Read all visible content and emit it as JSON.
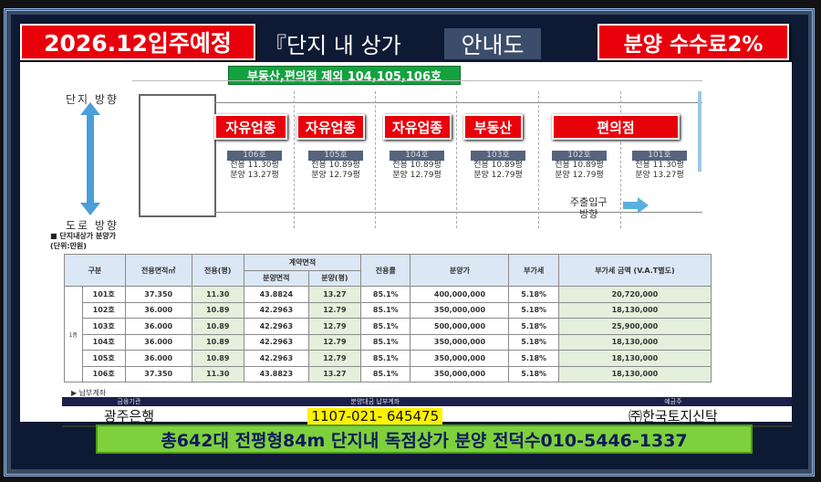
{
  "header": {
    "move_in": "2026.12입주예정",
    "title": "『단지 내 상가",
    "title_box": "안내도",
    "commission": "분양 수수료2%"
  },
  "plan": {
    "excluded_label": "부동산,편의점 제외 104,105,106호",
    "direction_top": "단지 방향",
    "direction_bottom": "도로 방향",
    "entrance": "주출입구",
    "entrance2": "방향",
    "categories": [
      "자유업종",
      "자유업종",
      "자유업종",
      "부동산",
      "편의점"
    ],
    "units": [
      {
        "no": "106호",
        "excl": "전용 11.30평",
        "sale": "분양 13.27평"
      },
      {
        "no": "105호",
        "excl": "전용 10.89평",
        "sale": "분양 12.79평"
      },
      {
        "no": "104호",
        "excl": "전용 10.89평",
        "sale": "분양 12.79평"
      },
      {
        "no": "103호",
        "excl": "전용 10.89평",
        "sale": "분양 12.79평"
      },
      {
        "no": "102호",
        "excl": "전용 10.89평",
        "sale": "분양 12.79평"
      },
      {
        "no": "101호",
        "excl": "전용 11.30평",
        "sale": "분양 13.27평"
      }
    ],
    "price_note": "■ 단지내상가 분양가",
    "unit_note": "(단위:만원)"
  },
  "table": {
    "headers": {
      "category": "구분",
      "excl_area": "전용면적㎡",
      "excl_py": "전용(평)",
      "contract": "계약면적",
      "sale_area": "분양면적",
      "sale_py": "분양(평)",
      "ratio": "전용률",
      "price": "분양가",
      "vat": "부가세",
      "vat_amount": "부가세 금액 (V.A.T별도)"
    },
    "floor": "1층",
    "rows": [
      [
        "101호",
        "37.350",
        "11.30",
        "43.8824",
        "13.27",
        "85.1%",
        "400,000,000",
        "5.18%",
        "20,720,000"
      ],
      [
        "102호",
        "36.000",
        "10.89",
        "42.2963",
        "12.79",
        "85.1%",
        "350,000,000",
        "5.18%",
        "18,130,000"
      ],
      [
        "103호",
        "36.000",
        "10.89",
        "42.2963",
        "12.79",
        "85.1%",
        "500,000,000",
        "5.18%",
        "25,900,000"
      ],
      [
        "104호",
        "36.000",
        "10.89",
        "42.2963",
        "12.79",
        "85.1%",
        "350,000,000",
        "5.18%",
        "18,130,000"
      ],
      [
        "105호",
        "36.000",
        "10.89",
        "42.2963",
        "12.79",
        "85.1%",
        "350,000,000",
        "5.18%",
        "18,130,000"
      ],
      [
        "106호",
        "37.350",
        "11.30",
        "43.8823",
        "13.27",
        "85.1%",
        "350,000,000",
        "5.18%",
        "18,130,000"
      ]
    ]
  },
  "account": {
    "label": "▶ 납부계좌",
    "h_bank": "금융기관",
    "h_account": "분양대금 납부계좌",
    "h_holder": "예금주",
    "bank": "광주은행",
    "number": "1107-021-  645475",
    "holder": "㈜한국토지신탁"
  },
  "banner": "총642대 전평형84m 단지내 독점상가 분양 전덕수010-5446-1337"
}
